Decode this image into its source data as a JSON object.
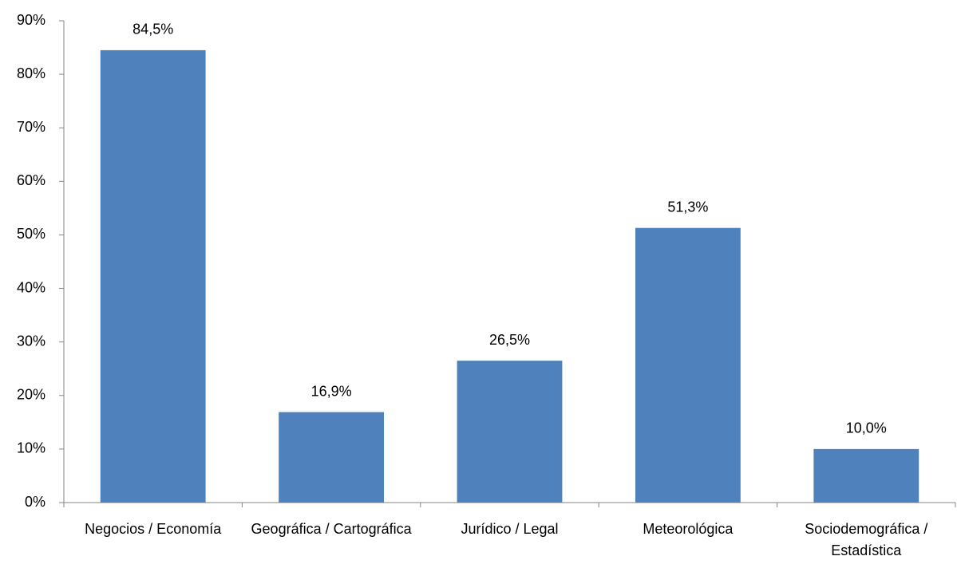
{
  "chart_data": {
    "type": "bar",
    "categories": [
      "Negocios / Economía",
      "Geográfica / Cartográfica",
      "Jurídico / Legal",
      "Meteorológica",
      "Sociodemográfica / Estadística"
    ],
    "values": [
      84.5,
      16.9,
      26.5,
      51.3,
      10.0
    ],
    "value_labels": [
      "84,5%",
      "16,9%",
      "26,5%",
      "51,3%",
      "10,0%"
    ],
    "color": "#4f81bd",
    "ylim": [
      0,
      90
    ],
    "yticks": [
      {
        "value": 0,
        "label": "0%"
      },
      {
        "value": 10,
        "label": "10%"
      },
      {
        "value": 20,
        "label": "20%"
      },
      {
        "value": 30,
        "label": "30%"
      },
      {
        "value": 40,
        "label": "40%"
      },
      {
        "value": 50,
        "label": "50%"
      },
      {
        "value": 60,
        "label": "60%"
      },
      {
        "value": 70,
        "label": "70%"
      },
      {
        "value": 80,
        "label": "80%"
      },
      {
        "value": 90,
        "label": "90%"
      }
    ],
    "grid": false
  }
}
